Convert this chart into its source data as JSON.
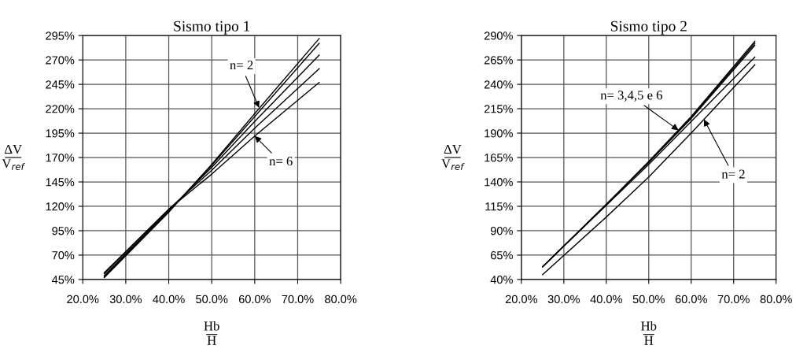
{
  "chart_data": [
    {
      "type": "line",
      "title": "Sismo tipo 1",
      "xlabel": "Hb\nH",
      "ylabel": "ΔV\nV$_{ref}$",
      "grid": true,
      "marker": "none",
      "line_style": "solid",
      "x": [
        25,
        40,
        50,
        60,
        75
      ],
      "xlim": [
        20,
        80
      ],
      "xticks": [
        {
          "value": 20,
          "label": "20.0%"
        },
        {
          "value": 30,
          "label": "30.0%"
        },
        {
          "value": 40,
          "label": "40.0%"
        },
        {
          "value": 50,
          "label": "50.0%"
        },
        {
          "value": 60,
          "label": "60.0%"
        },
        {
          "value": 70,
          "label": "70.0%"
        },
        {
          "value": 80,
          "label": "80.0%"
        }
      ],
      "ylim": [
        45,
        295
      ],
      "yticks": [
        {
          "value": 45,
          "label": "45%"
        },
        {
          "value": 70,
          "label": "70%"
        },
        {
          "value": 95,
          "label": "95%"
        },
        {
          "value": 120,
          "label": "120%"
        },
        {
          "value": 145,
          "label": "145%"
        },
        {
          "value": 170,
          "label": "170%"
        },
        {
          "value": 195,
          "label": "195%"
        },
        {
          "value": 220,
          "label": "220%"
        },
        {
          "value": 245,
          "label": "245%"
        },
        {
          "value": 270,
          "label": "270%"
        },
        {
          "value": 295,
          "label": "295%"
        }
      ],
      "series": [
        {
          "color": "#000000",
          "values": [
            47,
            114,
            163,
            215,
            292
          ]
        },
        {
          "color": "#000000",
          "values": [
            48,
            115,
            162,
            212,
            287
          ]
        },
        {
          "color": "#000000",
          "values": [
            49,
            116,
            160,
            207,
            275
          ]
        },
        {
          "color": "#000000",
          "values": [
            51,
            117,
            157,
            200,
            261
          ]
        },
        {
          "color": "#000000",
          "values": [
            52,
            117,
            153,
            192,
            247
          ]
        }
      ],
      "annotations": [
        {
          "text": "n= 2",
          "x": 61,
          "y": 221
        },
        {
          "text": "n= 6",
          "x": 60,
          "y": 192
        }
      ]
    },
    {
      "type": "line",
      "title": "Sismo tipo 2",
      "xlabel": "Hb\nH",
      "ylabel": "ΔV\nV$_{ref}$",
      "grid": true,
      "marker": "none",
      "line_style": "solid",
      "x": [
        25,
        40,
        50,
        60,
        75
      ],
      "xlim": [
        20,
        80
      ],
      "xticks": [
        {
          "value": 20,
          "label": "20.0%"
        },
        {
          "value": 30,
          "label": "30.0%"
        },
        {
          "value": 40,
          "label": "40.0%"
        },
        {
          "value": 50,
          "label": "50.0%"
        },
        {
          "value": 60,
          "label": "60.0%"
        },
        {
          "value": 70,
          "label": "70.0%"
        },
        {
          "value": 80,
          "label": "80.0%"
        }
      ],
      "ylim": [
        40,
        290
      ],
      "yticks": [
        {
          "value": 40,
          "label": "40%"
        },
        {
          "value": 65,
          "label": "65%"
        },
        {
          "value": 90,
          "label": "90%"
        },
        {
          "value": 115,
          "label": "115%"
        },
        {
          "value": 140,
          "label": "140%"
        },
        {
          "value": 165,
          "label": "165%"
        },
        {
          "value": 190,
          "label": "190%"
        },
        {
          "value": 215,
          "label": "215%"
        },
        {
          "value": 240,
          "label": "240%"
        },
        {
          "value": 265,
          "label": "265%"
        },
        {
          "value": 290,
          "label": "290%"
        }
      ],
      "series": [
        {
          "color": "#000000",
          "values": [
            45,
            104,
            145,
            190,
            260
          ]
        },
        {
          "color": "#000000",
          "values": [
            53,
            117,
            161,
            207,
            284
          ]
        },
        {
          "color": "#000000",
          "values": [
            53,
            117,
            160,
            206,
            282
          ]
        },
        {
          "color": "#000000",
          "values": [
            53,
            117,
            160,
            205,
            280
          ]
        },
        {
          "color": "#000000",
          "values": [
            53,
            116,
            158,
            202,
            268
          ]
        }
      ],
      "annotations": [
        {
          "text": "n= 3,4,5 e 6",
          "x": 57,
          "y": 193
        },
        {
          "text": "n= 2",
          "x": 63,
          "y": 204
        }
      ]
    }
  ]
}
